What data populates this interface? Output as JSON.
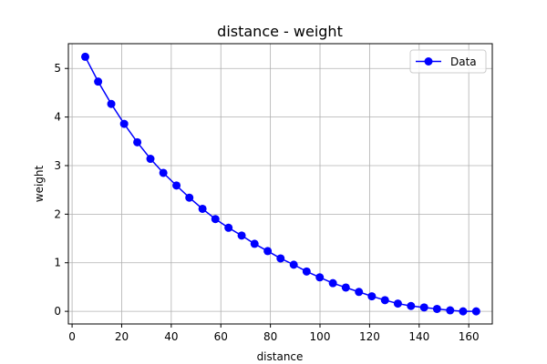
{
  "chart_data": {
    "type": "line",
    "title": "distance - weight",
    "xlabel": "distance",
    "ylabel": "weight",
    "xlim": [
      -1.5,
      169.5
    ],
    "ylim": [
      -0.26,
      5.51
    ],
    "xticks": [
      0,
      20,
      40,
      60,
      80,
      100,
      120,
      140,
      160
    ],
    "yticks": [
      0,
      1,
      2,
      3,
      4,
      5
    ],
    "grid": true,
    "legend_position": "top-right",
    "series": [
      {
        "name": "Data",
        "color": "#0000ff",
        "marker": "circle",
        "x": [
          5.3,
          10.5,
          15.8,
          21.0,
          26.3,
          31.6,
          36.8,
          42.1,
          47.3,
          52.6,
          57.8,
          63.1,
          68.4,
          73.6,
          78.9,
          84.1,
          89.4,
          94.6,
          99.9,
          105.2,
          110.4,
          115.7,
          120.9,
          126.2,
          131.4,
          136.7,
          142.0,
          147.2,
          152.5,
          157.7,
          163.0
        ],
        "y": [
          5.24,
          4.73,
          4.27,
          3.86,
          3.48,
          3.14,
          2.85,
          2.59,
          2.34,
          2.11,
          1.9,
          1.72,
          1.56,
          1.39,
          1.24,
          1.09,
          0.96,
          0.82,
          0.7,
          0.58,
          0.49,
          0.4,
          0.31,
          0.23,
          0.16,
          0.11,
          0.08,
          0.05,
          0.02,
          0.0,
          0.0
        ]
      }
    ]
  }
}
